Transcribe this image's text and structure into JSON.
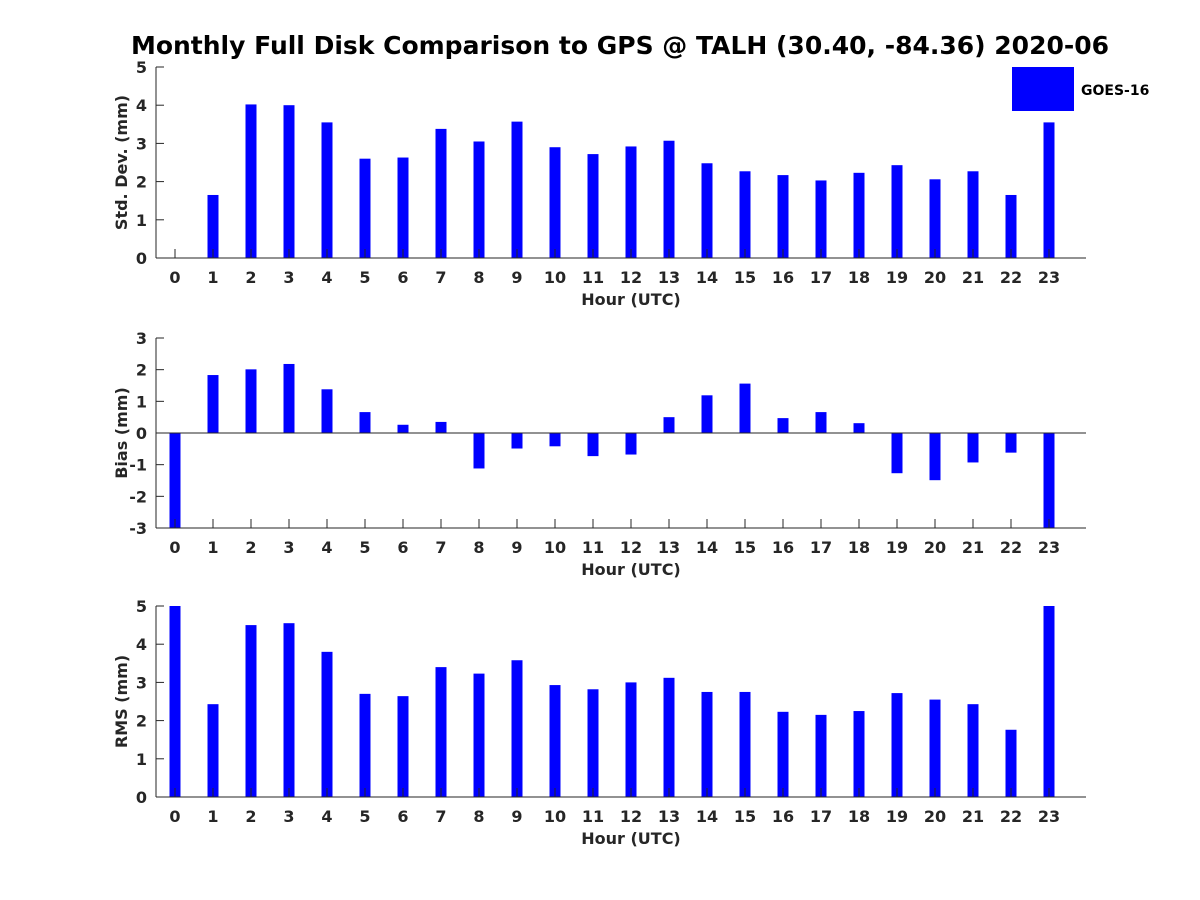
{
  "figure_title": "Monthly Full Disk Comparison to GPS @ TALH (30.40, -84.36) 2020-06",
  "legend": {
    "label": "GOES-16",
    "placement": "top-right"
  },
  "colors": {
    "bar": "#0000ff",
    "axis": "#262626"
  },
  "chart_data": [
    {
      "type": "bar",
      "xlabel": "Hour (UTC)",
      "ylabel": "Std. Dev. (mm)",
      "ylim": [
        0,
        5
      ],
      "yticks": [
        0,
        1,
        2,
        3,
        4,
        5
      ],
      "categories": [
        "0",
        "1",
        "2",
        "3",
        "4",
        "5",
        "6",
        "7",
        "8",
        "9",
        "10",
        "11",
        "12",
        "13",
        "14",
        "15",
        "16",
        "17",
        "18",
        "19",
        "20",
        "21",
        "22",
        "23"
      ],
      "series": [
        {
          "name": "GOES-16",
          "values": [
            0,
            1.65,
            4.02,
            4.0,
            3.55,
            2.6,
            2.63,
            3.38,
            3.05,
            3.57,
            2.9,
            2.72,
            2.92,
            3.07,
            2.48,
            2.27,
            2.17,
            2.03,
            2.23,
            2.43,
            2.06,
            2.27,
            1.65,
            3.55
          ]
        }
      ]
    },
    {
      "type": "bar",
      "xlabel": "Hour (UTC)",
      "ylabel": "Bias (mm)",
      "ylim": [
        -3,
        3
      ],
      "yticks": [
        -3,
        -2,
        -1,
        0,
        1,
        2,
        3
      ],
      "categories": [
        "0",
        "1",
        "2",
        "3",
        "4",
        "5",
        "6",
        "7",
        "8",
        "9",
        "10",
        "11",
        "12",
        "13",
        "14",
        "15",
        "16",
        "17",
        "18",
        "19",
        "20",
        "21",
        "22",
        "23"
      ],
      "series": [
        {
          "name": "GOES-16",
          "values": [
            -3.0,
            1.83,
            2.01,
            2.18,
            1.38,
            0.66,
            0.26,
            0.35,
            -1.12,
            -0.49,
            -0.42,
            -0.73,
            -0.68,
            0.5,
            1.19,
            1.56,
            0.47,
            0.66,
            0.31,
            -1.27,
            -1.49,
            -0.93,
            -0.62,
            -3.0
          ]
        }
      ]
    },
    {
      "type": "bar",
      "xlabel": "Hour (UTC)",
      "ylabel": "RMS (mm)",
      "ylim": [
        0,
        5
      ],
      "yticks": [
        0,
        1,
        2,
        3,
        4,
        5
      ],
      "categories": [
        "0",
        "1",
        "2",
        "3",
        "4",
        "5",
        "6",
        "7",
        "8",
        "9",
        "10",
        "11",
        "12",
        "13",
        "14",
        "15",
        "16",
        "17",
        "18",
        "19",
        "20",
        "21",
        "22",
        "23"
      ],
      "series": [
        {
          "name": "GOES-16",
          "values": [
            5.0,
            2.43,
            4.5,
            4.55,
            3.8,
            2.7,
            2.64,
            3.4,
            3.23,
            3.58,
            2.93,
            2.82,
            3.0,
            3.12,
            2.75,
            2.75,
            2.23,
            2.15,
            2.25,
            2.72,
            2.55,
            2.43,
            1.76,
            5.0
          ]
        }
      ]
    }
  ]
}
